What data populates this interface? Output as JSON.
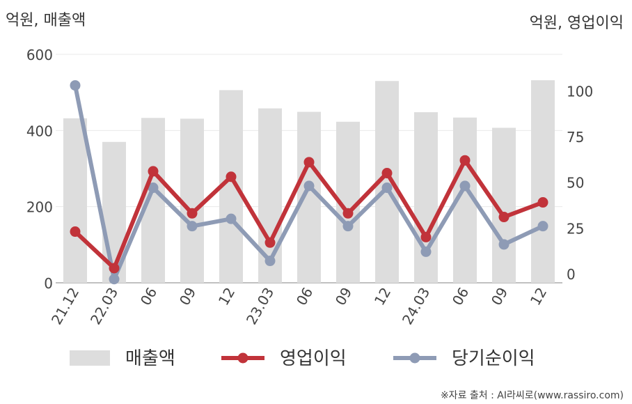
{
  "chart_data": {
    "type": "bar+line",
    "left_axis_title": "억원, 매출액",
    "right_axis_title": "억원, 영업이익",
    "categories": [
      "21.12",
      "22.03",
      "06",
      "09",
      "12",
      "23.03",
      "06",
      "09",
      "12",
      "24.03",
      "06",
      "09",
      "12"
    ],
    "left_ylim": [
      0,
      600
    ],
    "left_ticks": [
      "0",
      "200",
      "400",
      "600"
    ],
    "right_ylim": [
      -5,
      120
    ],
    "right_ticks": [
      "0",
      "25",
      "50",
      "75",
      "100"
    ],
    "series": [
      {
        "name": "매출액",
        "kind": "bar",
        "axis": "left",
        "color": "#dddddd",
        "values": [
          432,
          370,
          433,
          431,
          506,
          458,
          449,
          423,
          530,
          448,
          434,
          407,
          532
        ]
      },
      {
        "name": "영업이익",
        "kind": "line",
        "axis": "right",
        "color": "#c1333a",
        "values": [
          23,
          3,
          56,
          33,
          53,
          17,
          61,
          33,
          55,
          20,
          62,
          31,
          39
        ]
      },
      {
        "name": "당기순이익",
        "kind": "line",
        "axis": "right",
        "color": "#8e9bb5",
        "values": [
          103,
          -3,
          47,
          26,
          30,
          7,
          48,
          26,
          47,
          12,
          48,
          16,
          26
        ]
      }
    ],
    "grid": true
  },
  "source_text": "※자료 출처 : AI라씨로(www.rassiro.com)"
}
